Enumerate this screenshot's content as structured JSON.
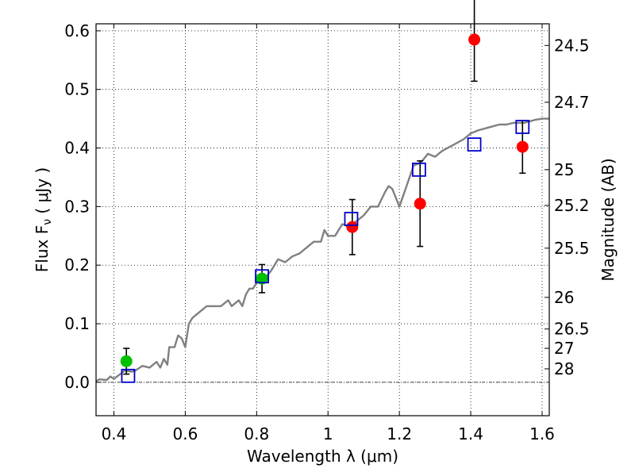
{
  "chart_data": {
    "type": "scatter",
    "xlabel": "Wavelength  λ (μm)",
    "ylabel": "Flux  F",
    "ylabel_subscript": "ν",
    "ylabel_unit": "  ( μJy )",
    "ylabel_right": "Magnitude (AB)",
    "xlim": [
      0.35,
      1.62
    ],
    "ylim": [
      -0.057,
      0.612
    ],
    "grid": true,
    "xticks": [
      0.4,
      0.6,
      0.8,
      1.0,
      1.2,
      1.4,
      1.6
    ],
    "xtick_labels": [
      "0.4",
      "0.6",
      "0.8",
      "1",
      "1.2",
      "1.4",
      "1.6"
    ],
    "yticks": [
      0.0,
      0.1,
      0.2,
      0.3,
      0.4,
      0.5,
      0.6
    ],
    "ytick_labels": [
      "0.0",
      "0.1",
      "0.2",
      "0.3",
      "0.4",
      "0.5",
      "0.6"
    ],
    "right_ticks": [
      {
        "label": "24.5",
        "flux": 0.575
      },
      {
        "label": "24.7",
        "flux": 0.478
      },
      {
        "label": "25",
        "flux": 0.363
      },
      {
        "label": "25.2",
        "flux": 0.302
      },
      {
        "label": "25.5",
        "flux": 0.229
      },
      {
        "label": "26",
        "flux": 0.145
      },
      {
        "label": "26.5",
        "flux": 0.091
      },
      {
        "label": "27",
        "flux": 0.058
      },
      {
        "label": "28",
        "flux": 0.023
      }
    ],
    "hline": 0.0,
    "series": [
      {
        "kind": "model",
        "color": "#808080",
        "x": [
          0.35,
          0.36,
          0.38,
          0.39,
          0.4,
          0.42,
          0.43,
          0.45,
          0.46,
          0.48,
          0.5,
          0.52,
          0.53,
          0.54,
          0.55,
          0.555,
          0.56,
          0.57,
          0.58,
          0.59,
          0.6,
          0.61,
          0.62,
          0.64,
          0.66,
          0.68,
          0.7,
          0.72,
          0.73,
          0.75,
          0.76,
          0.77,
          0.78,
          0.79,
          0.8,
          0.82,
          0.84,
          0.85,
          0.86,
          0.88,
          0.9,
          0.92,
          0.94,
          0.96,
          0.98,
          0.99,
          1.0,
          1.02,
          1.04,
          1.06,
          1.08,
          1.1,
          1.12,
          1.14,
          1.16,
          1.17,
          1.18,
          1.19,
          1.2,
          1.22,
          1.24,
          1.26,
          1.28,
          1.3,
          1.32,
          1.35,
          1.38,
          1.4,
          1.42,
          1.45,
          1.48,
          1.5,
          1.52,
          1.55,
          1.58,
          1.6,
          1.62
        ],
        "y": [
          0.002,
          0.005,
          0.004,
          0.01,
          0.006,
          0.015,
          0.02,
          0.018,
          0.02,
          0.028,
          0.025,
          0.035,
          0.025,
          0.04,
          0.03,
          0.06,
          0.06,
          0.06,
          0.08,
          0.075,
          0.06,
          0.1,
          0.11,
          0.12,
          0.13,
          0.13,
          0.13,
          0.14,
          0.13,
          0.14,
          0.13,
          0.15,
          0.16,
          0.16,
          0.17,
          0.175,
          0.19,
          0.2,
          0.21,
          0.205,
          0.215,
          0.22,
          0.23,
          0.24,
          0.24,
          0.26,
          0.25,
          0.25,
          0.27,
          0.265,
          0.275,
          0.285,
          0.3,
          0.3,
          0.325,
          0.335,
          0.33,
          0.315,
          0.3,
          0.335,
          0.37,
          0.375,
          0.39,
          0.385,
          0.395,
          0.405,
          0.415,
          0.425,
          0.43,
          0.435,
          0.44,
          0.44,
          0.443,
          0.443,
          0.448,
          0.45,
          0.45
        ]
      },
      {
        "kind": "photometry",
        "marker": "circle",
        "color": "#ff0000",
        "x": [
          1.068,
          1.258,
          1.41,
          1.545
        ],
        "y": [
          0.265,
          0.305,
          0.585,
          0.402
        ],
        "err": [
          0.047,
          0.073,
          0.071,
          0.045
        ]
      },
      {
        "kind": "photometry",
        "marker": "circle",
        "color": "#00c000",
        "x": [
          0.435,
          0.815
        ],
        "y": [
          0.036,
          0.177
        ],
        "err": [
          0.022,
          0.024
        ]
      },
      {
        "kind": "model-bandpass",
        "marker": "square",
        "color": "#0000cc",
        "x": [
          0.44,
          0.815,
          1.065,
          1.255,
          1.41,
          1.545
        ],
        "y": [
          0.011,
          0.181,
          0.279,
          0.363,
          0.406,
          0.436
        ]
      }
    ]
  }
}
